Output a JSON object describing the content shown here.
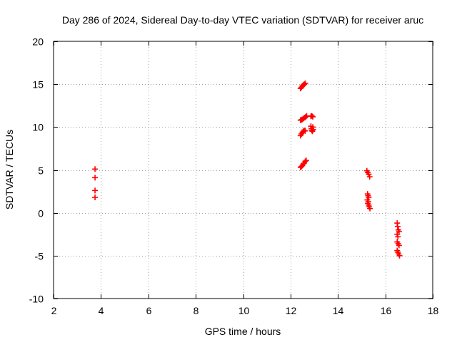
{
  "chart_data": {
    "type": "scatter",
    "title": "Day 286 of 2024, Sidereal Day-to-day VTEC variation (SDTVAR) for receiver aruc",
    "xlabel": "GPS time / hours",
    "ylabel": "SDTVAR / TECUs",
    "xlim": [
      2,
      18
    ],
    "ylim": [
      -10,
      20
    ],
    "xticks": [
      2,
      4,
      6,
      8,
      10,
      12,
      14,
      16,
      18
    ],
    "yticks": [
      -10,
      -5,
      0,
      5,
      10,
      15,
      20
    ],
    "grid": true,
    "marker": "plus",
    "series": [
      {
        "name": "SDTVAR",
        "color": "#ff0000",
        "points": [
          [
            3.75,
            5.1
          ],
          [
            3.75,
            4.1
          ],
          [
            3.75,
            2.6
          ],
          [
            3.75,
            1.8
          ],
          [
            12.42,
            14.5
          ],
          [
            12.46,
            14.65
          ],
          [
            12.5,
            14.8
          ],
          [
            12.54,
            14.9
          ],
          [
            12.58,
            15.0
          ],
          [
            12.62,
            15.1
          ],
          [
            12.42,
            10.8
          ],
          [
            12.46,
            10.85
          ],
          [
            12.5,
            10.9
          ],
          [
            12.55,
            11.0
          ],
          [
            12.6,
            11.1
          ],
          [
            12.64,
            11.2
          ],
          [
            12.68,
            11.3
          ],
          [
            12.86,
            11.25
          ],
          [
            12.9,
            11.3
          ],
          [
            12.94,
            11.2
          ],
          [
            12.42,
            9.0
          ],
          [
            12.46,
            9.2
          ],
          [
            12.5,
            9.4
          ],
          [
            12.54,
            9.5
          ],
          [
            12.58,
            9.6
          ],
          [
            12.62,
            9.55
          ],
          [
            12.86,
            10.1
          ],
          [
            12.88,
            9.8
          ],
          [
            12.9,
            9.6
          ],
          [
            12.92,
            9.5
          ],
          [
            12.94,
            10.0
          ],
          [
            12.96,
            9.7
          ],
          [
            12.42,
            5.3
          ],
          [
            12.46,
            5.4
          ],
          [
            12.5,
            5.5
          ],
          [
            12.54,
            5.7
          ],
          [
            12.58,
            5.8
          ],
          [
            12.62,
            6.0
          ],
          [
            12.66,
            6.1
          ],
          [
            15.22,
            4.9
          ],
          [
            15.26,
            4.7
          ],
          [
            15.3,
            4.5
          ],
          [
            15.34,
            4.2
          ],
          [
            15.25,
            2.2
          ],
          [
            15.27,
            2.0
          ],
          [
            15.3,
            1.8
          ],
          [
            15.24,
            1.5
          ],
          [
            15.28,
            1.3
          ],
          [
            15.26,
            1.1
          ],
          [
            15.3,
            0.9
          ],
          [
            15.32,
            0.7
          ],
          [
            15.35,
            0.5
          ],
          [
            16.5,
            -1.2
          ],
          [
            16.52,
            -1.6
          ],
          [
            16.55,
            -2.0
          ],
          [
            16.58,
            -2.2
          ],
          [
            16.5,
            -2.5
          ],
          [
            16.53,
            -2.8
          ],
          [
            16.5,
            -3.4
          ],
          [
            16.54,
            -3.6
          ],
          [
            16.58,
            -3.8
          ],
          [
            16.5,
            -4.4
          ],
          [
            16.53,
            -4.6
          ],
          [
            16.56,
            -4.8
          ],
          [
            16.6,
            -5.0
          ]
        ]
      }
    ]
  }
}
